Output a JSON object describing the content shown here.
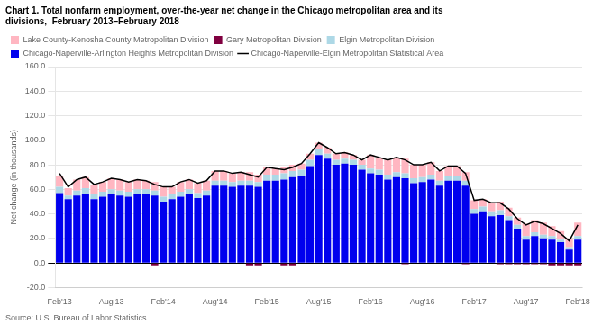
{
  "chart_data": {
    "type": "bar",
    "stacked": true,
    "title": [
      "Chart 1. Total nonfarm employment, over-the-year net change in the Chicago metropolitan area and its",
      "divisions,  February 2013–February 2018"
    ],
    "ylabel": "Net change (in thousands)",
    "source": "Source: U.S. Bureau of Labor Statistics.",
    "legend": "upper left",
    "grid": "y",
    "ylim": [
      -20,
      160
    ],
    "yticks": [
      {
        "value": -20,
        "label": "-20.0"
      },
      {
        "value": 0,
        "label": "0.0"
      },
      {
        "value": 20,
        "label": "20.0"
      },
      {
        "value": 40,
        "label": "40.0"
      },
      {
        "value": 60,
        "label": "60.0"
      },
      {
        "value": 80,
        "label": "80.0"
      },
      {
        "value": 100,
        "label": "100.0"
      },
      {
        "value": 120,
        "label": "120.0"
      },
      {
        "value": 140,
        "label": "140.0"
      },
      {
        "value": 160,
        "label": "160.0"
      }
    ],
    "categories": [
      "Feb'13",
      null,
      null,
      null,
      null,
      null,
      "Aug'13",
      null,
      null,
      null,
      null,
      null,
      "Feb'14",
      null,
      null,
      null,
      null,
      null,
      "Aug'14",
      null,
      null,
      null,
      null,
      null,
      "Feb'15",
      null,
      null,
      null,
      null,
      null,
      "Aug'15",
      null,
      null,
      null,
      null,
      null,
      "Feb'16",
      null,
      null,
      null,
      null,
      null,
      "Aug'16",
      null,
      null,
      null,
      null,
      null,
      "Feb'17",
      null,
      null,
      null,
      null,
      null,
      "Aug'17",
      null,
      null,
      null,
      null,
      null,
      "Feb'18"
    ],
    "series": [
      {
        "name": "Lake County-Kenosha County Metropolitan Division",
        "type": "bar",
        "color": "#FFB6C1",
        "values": [
          9,
          6,
          9,
          9,
          8,
          8,
          9,
          9,
          8,
          8,
          7,
          7,
          8,
          6,
          8,
          8,
          8,
          8,
          8,
          8,
          7,
          7,
          7,
          6,
          6,
          5,
          5,
          5,
          5,
          5,
          5,
          5,
          5,
          5,
          4,
          4,
          11,
          10,
          12,
          12,
          12,
          11,
          10,
          10,
          8,
          8,
          8,
          7,
          7,
          6,
          7,
          7,
          7,
          6,
          10,
          10,
          10,
          8,
          7,
          7,
          11
        ]
      },
      {
        "name": "Gary Metropolitan Division",
        "type": "bar",
        "color": "#800040",
        "values": [
          0,
          0,
          0,
          0,
          0,
          0,
          0,
          0,
          0,
          0,
          0,
          -2,
          0,
          0,
          0,
          0,
          0,
          0,
          0,
          0,
          0,
          0,
          -2,
          -2,
          0,
          0,
          -2,
          -2,
          0,
          0,
          0,
          0,
          0,
          0,
          0,
          0,
          0,
          0,
          0,
          0,
          -1,
          0,
          0,
          0,
          0,
          0,
          0,
          -1,
          0,
          0,
          0,
          -1,
          -1,
          -1,
          -1,
          -1,
          -1,
          -2,
          -2,
          -2,
          -2
        ]
      },
      {
        "name": "Elgin Metropolitan Division",
        "type": "bar",
        "color": "#ADD8E6",
        "values": [
          5,
          3,
          4,
          5,
          4,
          4,
          4,
          4,
          4,
          4,
          4,
          4,
          4,
          4,
          4,
          4,
          4,
          4,
          4,
          4,
          4,
          4,
          4,
          4,
          5,
          5,
          5,
          5,
          5,
          5,
          5,
          4,
          4,
          4,
          4,
          4,
          4,
          4,
          4,
          4,
          4,
          4,
          4,
          4,
          4,
          4,
          4,
          4,
          4,
          4,
          4,
          4,
          3,
          3,
          3,
          3,
          3,
          3,
          2,
          2,
          3
        ]
      },
      {
        "name": "Chicago-Naperville-Arlington Heights Metropolitan Division",
        "type": "bar",
        "color": "#0000EE",
        "values": [
          57,
          52,
          55,
          56,
          52,
          54,
          56,
          55,
          54,
          56,
          56,
          55,
          50,
          52,
          54,
          56,
          53,
          55,
          63,
          63,
          62,
          63,
          63,
          62,
          67,
          67,
          68,
          70,
          71,
          79,
          88,
          85,
          80,
          81,
          80,
          76,
          73,
          72,
          68,
          70,
          69,
          65,
          66,
          68,
          63,
          67,
          67,
          63,
          40,
          42,
          38,
          39,
          35,
          28,
          19,
          22,
          20,
          19,
          17,
          11,
          19
        ]
      },
      {
        "name": "Chicago-Naperville-Elgin Metropolitan Statistical Area",
        "type": "line",
        "color": "#000000",
        "line_style": "solid",
        "marker": "none",
        "values": [
          73,
          62,
          68,
          70,
          64,
          66,
          69,
          68,
          66,
          68,
          67,
          64,
          62,
          62,
          66,
          68,
          65,
          67,
          75,
          75,
          73,
          74,
          72,
          70,
          78,
          77,
          76,
          78,
          81,
          89,
          98,
          94,
          89,
          90,
          88,
          84,
          88,
          86,
          84,
          86,
          84,
          80,
          80,
          82,
          75,
          79,
          79,
          73,
          51,
          52,
          49,
          49,
          44,
          36,
          31,
          34,
          32,
          28,
          24,
          18,
          31
        ]
      }
    ]
  }
}
